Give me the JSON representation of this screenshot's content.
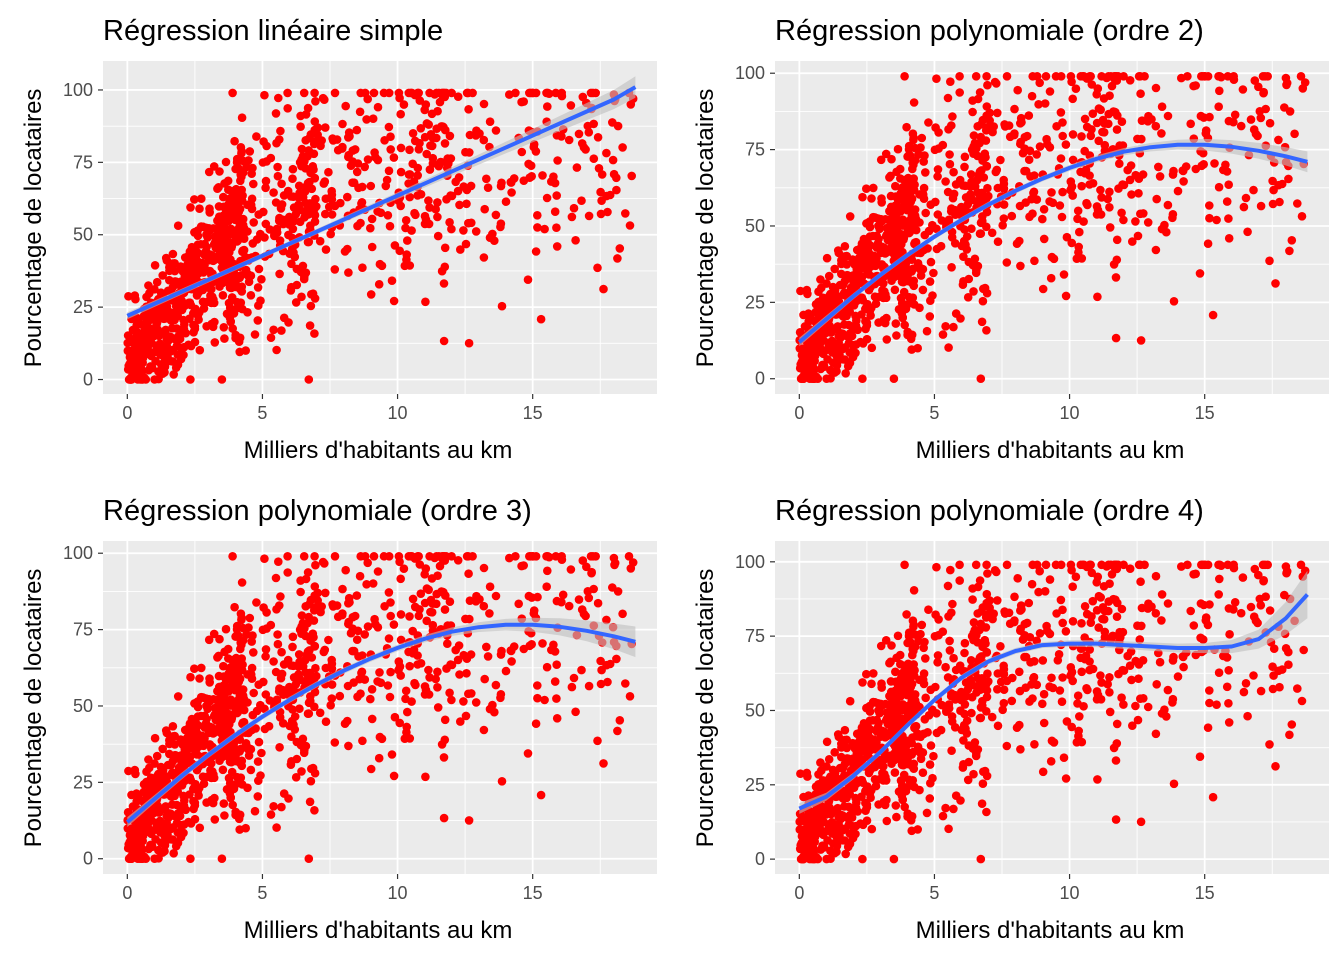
{
  "figure": {
    "colors": {
      "panel_background": "#ebebeb",
      "grid_major": "#ffffff",
      "points": "#ff0000",
      "fit_line": "#3366ff",
      "confidence_band": "#bebebe",
      "tick_text": "#4d4d4d",
      "tick_marks": "#333333"
    }
  },
  "chart_data": [
    {
      "type": "scatter",
      "title": "Régression linéaire simple",
      "xlabel": "Milliers d'habitants au km",
      "ylabel": "Pourcentage de locataires",
      "xlim": [
        -0.9,
        19.6
      ],
      "ylim": [
        -5,
        110
      ],
      "xticks": [
        0,
        5,
        10,
        15
      ],
      "yticks": [
        0,
        25,
        50,
        75,
        100
      ],
      "grid": true,
      "fit": {
        "method": "linear",
        "x": [
          0,
          2,
          4,
          6,
          8,
          10,
          12,
          14,
          16,
          18,
          18.8
        ],
        "y": [
          22,
          30.3,
          38.6,
          46.9,
          55.2,
          63.5,
          71.8,
          80.1,
          88.4,
          96.7,
          101
        ],
        "se": [
          1.2,
          1.0,
          0.9,
          0.9,
          1.0,
          1.2,
          1.5,
          2.0,
          2.6,
          3.3,
          3.7
        ]
      }
    },
    {
      "type": "scatter",
      "title": "Régression polynomiale (ordre 2)",
      "xlabel": "Milliers d'habitants au km",
      "ylabel": "Pourcentage de locataires",
      "xlim": [
        -0.9,
        19.6
      ],
      "ylim": [
        -5,
        104
      ],
      "xticks": [
        0,
        5,
        10,
        15
      ],
      "yticks": [
        0,
        25,
        50,
        75,
        100
      ],
      "grid": true,
      "fit": {
        "method": "poly2",
        "x": [
          0,
          1,
          2,
          3,
          4,
          5,
          6,
          7,
          8,
          9,
          10,
          11,
          12,
          13,
          14,
          15,
          16,
          17,
          18,
          18.8
        ],
        "y": [
          12,
          19.5,
          27,
          34,
          40.5,
          46.5,
          52,
          57,
          61.5,
          65.5,
          69,
          72,
          74.3,
          75.8,
          76.6,
          76.6,
          75.9,
          74.6,
          72.8,
          71
        ],
        "se": [
          1.4,
          1.2,
          1.0,
          0.9,
          0.9,
          0.9,
          0.9,
          0.9,
          0.9,
          0.9,
          1.0,
          1.1,
          1.2,
          1.4,
          1.6,
          1.9,
          2.2,
          2.6,
          3.0,
          3.4
        ]
      }
    },
    {
      "type": "scatter",
      "title": "Régression polynomiale (ordre 3)",
      "xlabel": "Milliers d'habitants au km",
      "ylabel": "Pourcentage de locataires",
      "xlim": [
        -0.9,
        19.6
      ],
      "ylim": [
        -5,
        104
      ],
      "xticks": [
        0,
        5,
        10,
        15
      ],
      "yticks": [
        0,
        25,
        50,
        75,
        100
      ],
      "grid": true,
      "fit": {
        "method": "poly3",
        "x": [
          0,
          1,
          2,
          3,
          4,
          5,
          6,
          7,
          8,
          9,
          10,
          11,
          12,
          13,
          14,
          15,
          16,
          17,
          18,
          18.8
        ],
        "y": [
          12,
          19.5,
          27,
          34,
          40.5,
          46.5,
          52,
          57,
          61.5,
          65.5,
          69,
          72,
          74.3,
          75.8,
          76.6,
          76.6,
          75.9,
          74.6,
          72.8,
          71
        ],
        "se": [
          1.6,
          1.3,
          1.1,
          1.0,
          1.0,
          1.0,
          1.0,
          1.0,
          1.0,
          1.0,
          1.1,
          1.2,
          1.4,
          1.6,
          1.9,
          2.3,
          2.8,
          3.4,
          4.2,
          5.0
        ]
      }
    },
    {
      "type": "scatter",
      "title": "Régression polynomiale (ordre 4)",
      "xlabel": "Milliers d'habitants au km",
      "ylabel": "Pourcentage de locataires",
      "xlim": [
        -0.9,
        19.6
      ],
      "ylim": [
        -5,
        107
      ],
      "xticks": [
        0,
        5,
        10,
        15
      ],
      "yticks": [
        0,
        25,
        50,
        75,
        100
      ],
      "grid": true,
      "fit": {
        "method": "poly4",
        "x": [
          0,
          1,
          2,
          3,
          4,
          5,
          6,
          7,
          8,
          9,
          10,
          11,
          12,
          13,
          14,
          15,
          16,
          17,
          18,
          18.8
        ],
        "y": [
          17,
          21,
          28,
          36,
          45,
          53.5,
          61,
          66.5,
          70,
          72,
          72.5,
          72.5,
          72,
          71.5,
          71,
          71,
          71.5,
          74,
          81,
          89
        ],
        "se": [
          1.8,
          1.3,
          1.1,
          1.0,
          1.0,
          1.0,
          1.0,
          1.0,
          1.0,
          1.0,
          1.1,
          1.2,
          1.3,
          1.4,
          1.5,
          1.7,
          2.2,
          3.2,
          5.5,
          8.0
        ]
      }
    }
  ]
}
